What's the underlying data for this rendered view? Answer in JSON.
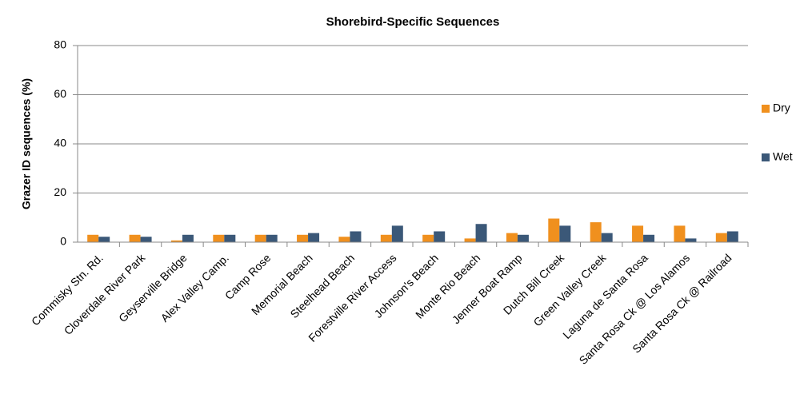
{
  "chart_data": {
    "type": "bar",
    "title": "Shorebird-Specific Sequences",
    "y_label": "Grazer ID sequences (%)",
    "categories": [
      "Commisky Stn. Rd.",
      "Cloverdale River Park",
      "Geyserville Bridge",
      "Alex Valley Camp.",
      "Camp Rose",
      "Memorial Beach",
      "Steelhead Beach",
      "Forestville River Access",
      "Johnson's Beach",
      "Monte Rio Beach",
      "Jenner Boat Ramp",
      "Dutch Bill Creek",
      "Green Valley Creek",
      "Laguna de Santa Rosa",
      "Santa Rosa Ck @ Los Alamos",
      "Santa Rosa Ck @ Railroad"
    ],
    "series": [
      {
        "name": "Dry",
        "color": "#f0901e",
        "values": [
          3,
          3,
          0.7,
          3,
          3,
          3,
          2.2,
          3,
          3,
          1.5,
          3.7,
          9.6,
          8.1,
          6.7,
          6.7,
          3.7
        ]
      },
      {
        "name": "Wet",
        "color": "#3b5878",
        "values": [
          2.2,
          2.2,
          3,
          3,
          3,
          3.7,
          4.4,
          6.7,
          4.4,
          7.4,
          3,
          6.7,
          3.7,
          3,
          1.5,
          4.4
        ]
      }
    ],
    "ylim": [
      0,
      80
    ],
    "yticks": [
      0,
      20,
      40,
      60,
      80
    ],
    "grid": true,
    "legend": "right"
  }
}
